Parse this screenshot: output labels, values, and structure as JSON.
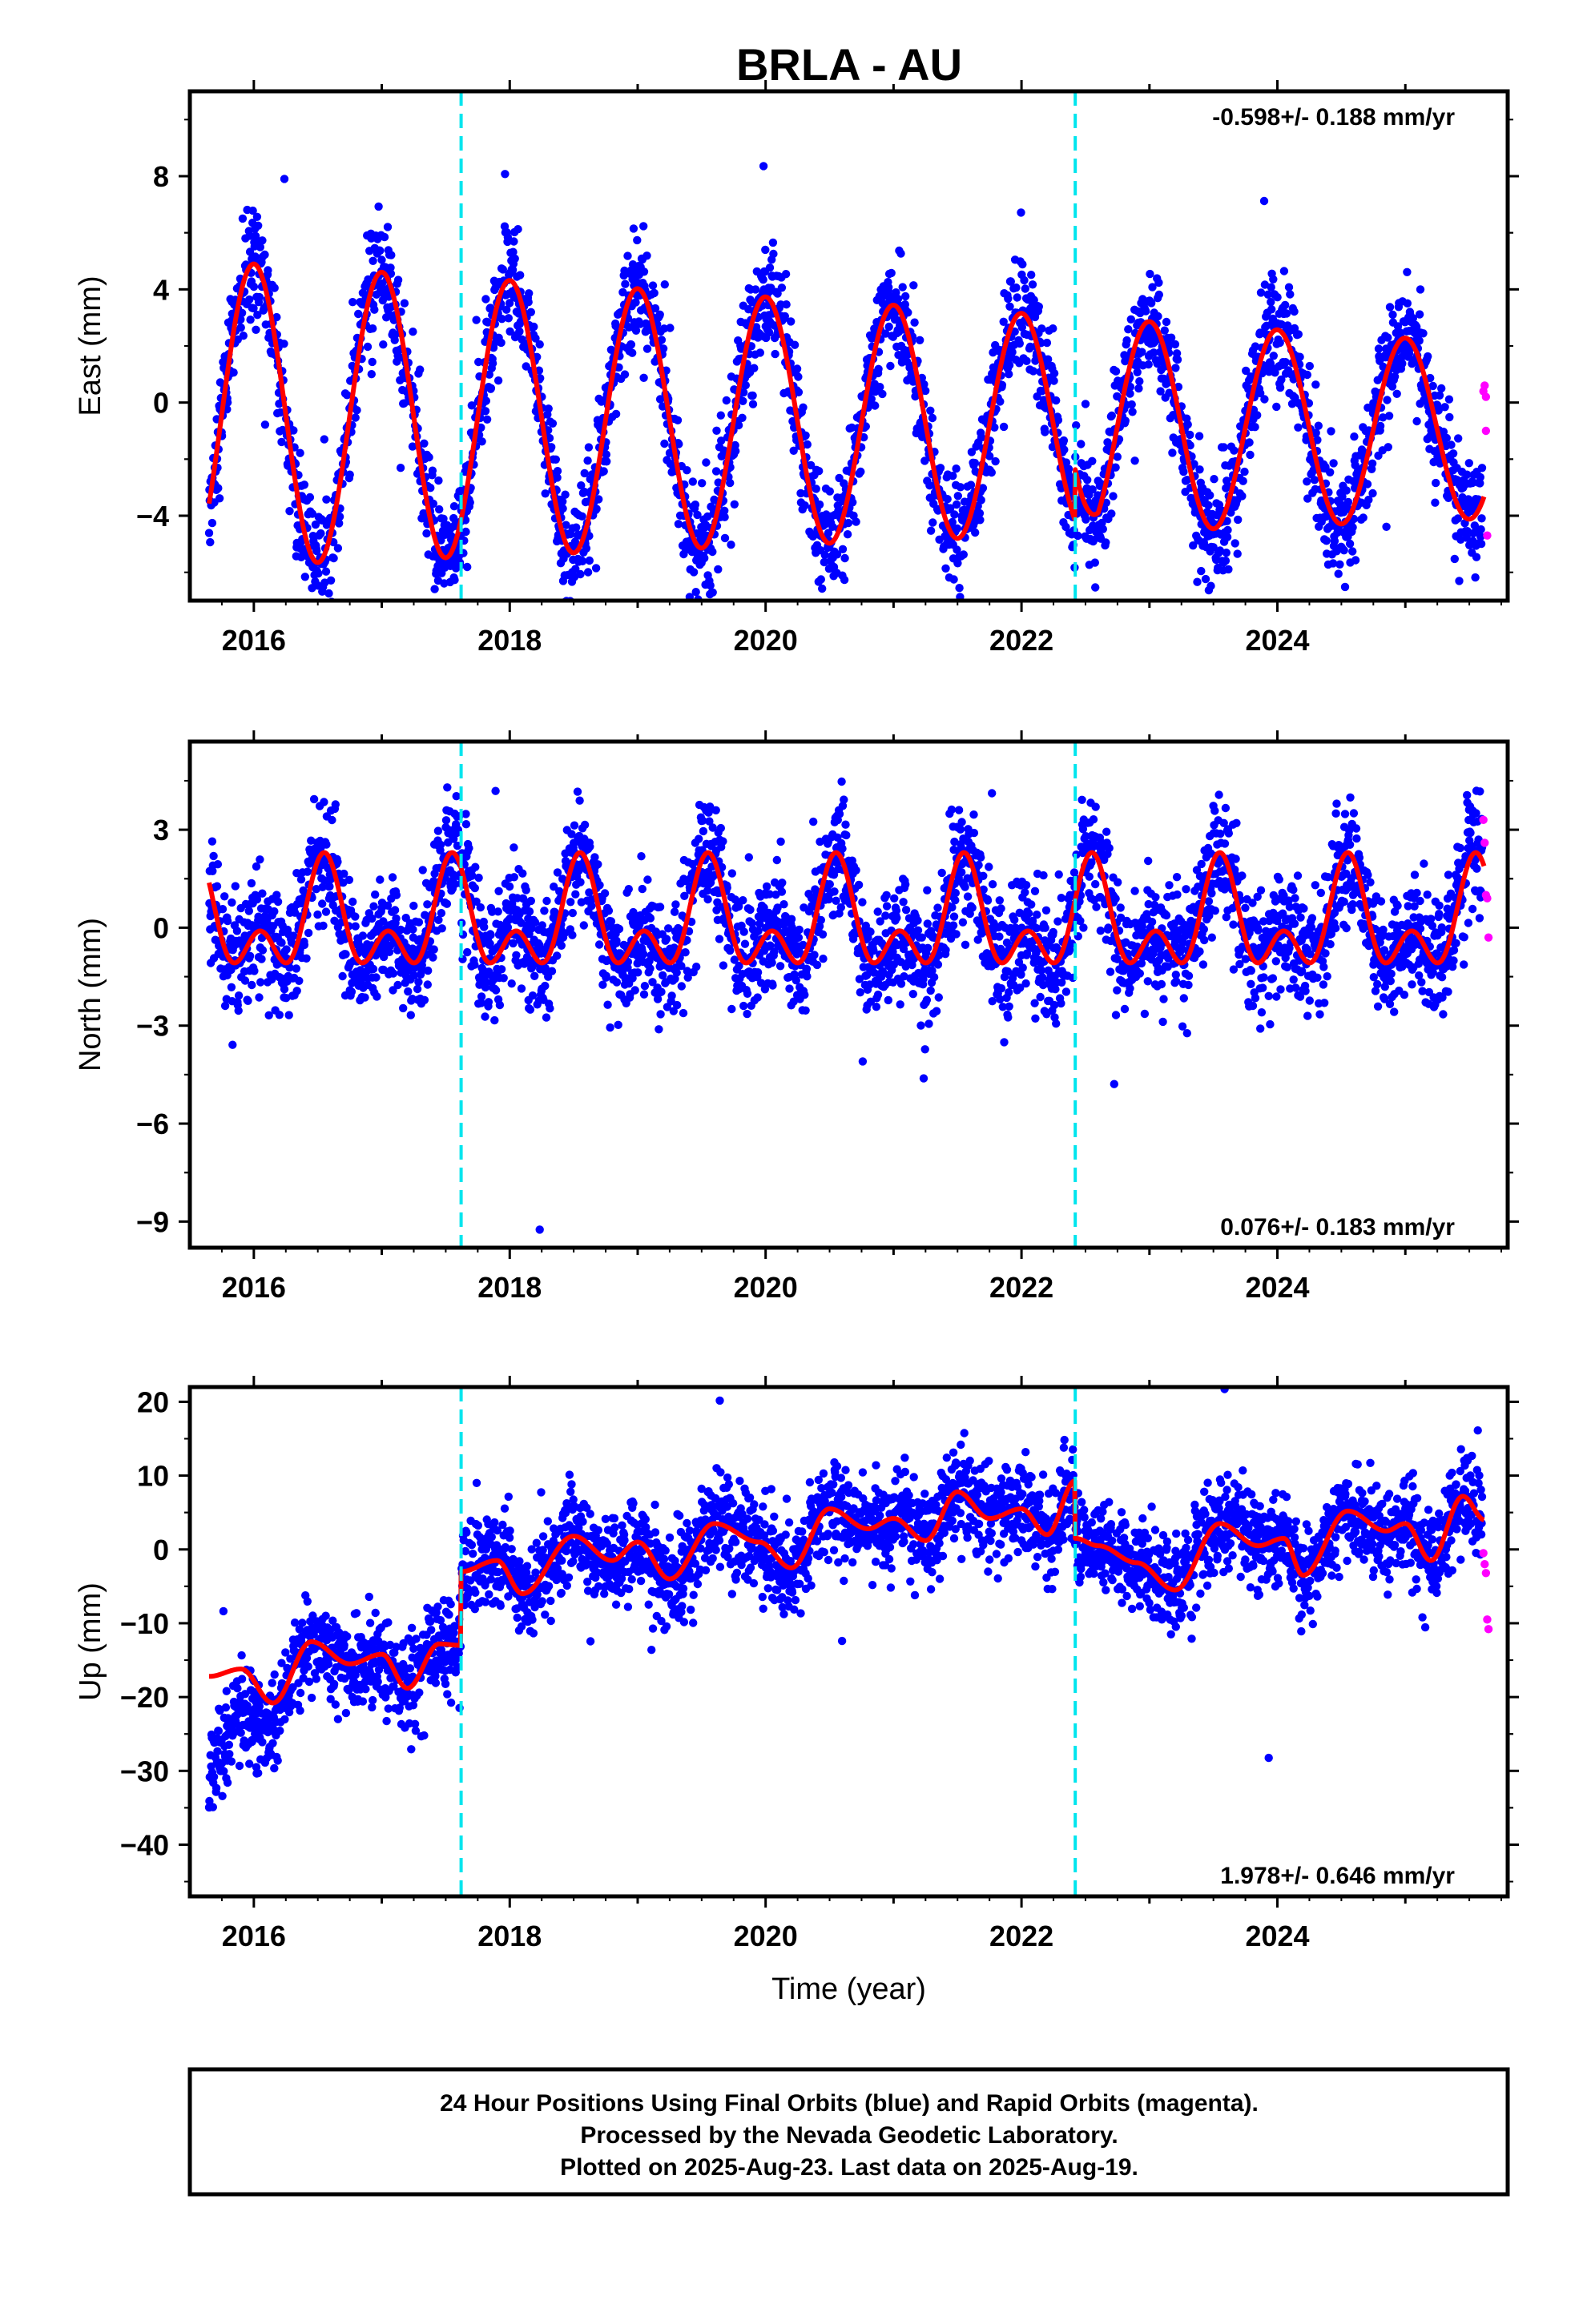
{
  "title": "BRLA - AU",
  "footer": {
    "line1": "24 Hour Positions Using Final Orbits (blue) and Rapid Orbits (magenta).",
    "line2": "Processed by the Nevada Geodetic Laboratory.",
    "line3": "Plotted on 2025-Aug-23. Last data on 2025-Aug-19."
  },
  "chart_data": [
    {
      "type": "scatter",
      "component": "east",
      "ylabel": "East (mm)",
      "xlabel": "",
      "xlim": [
        2015.5,
        2025.8
      ],
      "ylim": [
        -7,
        11
      ],
      "yticks": [
        -4,
        0,
        4,
        8
      ],
      "xticks": [
        2016,
        2018,
        2020,
        2022,
        2024
      ],
      "rate": "-0.598+/- 0.188 mm/yr",
      "rate_position": "top-right",
      "offsets": [
        2017.62,
        2022.42
      ],
      "fit": {
        "amplitude_start": 5.4,
        "amplitude_end": 3.1,
        "trend_start": 0.0,
        "trend_end": -0.6,
        "annual_peak_epoch": 2016.0,
        "semiannual_amplitude": 0.0,
        "step_at_2022_42": 1.8
      },
      "final_orbits": {
        "color": "#0000ff",
        "scatter_sd": 1.0,
        "daily": true
      },
      "rapid_orbits": {
        "color": "#ff00ff",
        "x": [
          2025.61,
          2025.62,
          2025.63,
          2025.63,
          2025.64
        ],
        "y": [
          0.4,
          0.6,
          -1.0,
          0.2,
          -4.7
        ]
      },
      "grid": false,
      "legend": "none"
    },
    {
      "type": "scatter",
      "component": "north",
      "ylabel": "North (mm)",
      "xlabel": "",
      "xlim": [
        2015.5,
        2025.8
      ],
      "ylim": [
        -9.8,
        5.7
      ],
      "yticks": [
        -9,
        -6,
        -3,
        0,
        3
      ],
      "xticks": [
        2016,
        2018,
        2020,
        2022,
        2024
      ],
      "rate": "0.076+/- 0.183 mm/yr",
      "rate_position": "bottom-right",
      "offsets": [
        2017.62,
        2022.42
      ],
      "fit": {
        "base": 0.0,
        "annual_amplitude": 1.2,
        "semiannual_amplitude": 1.0,
        "peak_epoch": 2016.55
      },
      "final_orbits": {
        "color": "#0000ff",
        "scatter_sd": 0.9,
        "daily": true
      },
      "rapid_orbits": {
        "color": "#ff00ff",
        "x": [
          2025.61,
          2025.62,
          2025.63,
          2025.64,
          2025.65
        ],
        "y": [
          3.3,
          2.6,
          1.0,
          0.9,
          -0.3
        ]
      },
      "grid": false,
      "legend": "none"
    },
    {
      "type": "scatter",
      "component": "up",
      "ylabel": "Up (mm)",
      "xlabel": "Time (year)",
      "xlim": [
        2015.5,
        2025.8
      ],
      "ylim": [
        -47,
        22
      ],
      "yticks": [
        -40,
        -30,
        -20,
        -10,
        0,
        10,
        20
      ],
      "xticks": [
        2016,
        2018,
        2020,
        2022,
        2024
      ],
      "rate": "1.978+/- 0.646 mm/yr",
      "rate_position": "bottom-right",
      "offsets": [
        2017.62,
        2022.42
      ],
      "fit_segments": [
        {
          "from": 2015.65,
          "to": 2017.62,
          "x": [
            2015.65,
            2015.9,
            2016.15,
            2016.45,
            2016.75,
            2017.0,
            2017.2,
            2017.45,
            2017.62
          ],
          "y": [
            -17.2,
            -16.2,
            -20.8,
            -12.5,
            -15.5,
            -14.2,
            -18.8,
            -12.8,
            -13.0
          ]
        },
        {
          "from": 2017.62,
          "to": 2022.42,
          "x": [
            2017.62,
            2017.9,
            2018.1,
            2018.5,
            2018.8,
            2019.0,
            2019.25,
            2019.6,
            2019.95,
            2020.2,
            2020.5,
            2020.8,
            2021.0,
            2021.25,
            2021.5,
            2021.75,
            2022.0,
            2022.2,
            2022.42
          ],
          "y": [
            -3.0,
            -1.5,
            -6.0,
            1.8,
            -1.5,
            1.0,
            -4.0,
            3.5,
            1.0,
            -2.5,
            5.5,
            2.8,
            4.2,
            1.2,
            7.8,
            4.2,
            5.5,
            2.0,
            9.3
          ]
        },
        {
          "from": 2022.42,
          "to": 2025.62,
          "x": [
            2022.42,
            2022.6,
            2022.9,
            2023.2,
            2023.55,
            2023.85,
            2024.05,
            2024.2,
            2024.55,
            2024.85,
            2025.0,
            2025.2,
            2025.45,
            2025.62
          ],
          "y": [
            1.5,
            0.5,
            -1.8,
            -5.5,
            3.5,
            0.5,
            1.5,
            -3.5,
            5.2,
            2.5,
            3.5,
            -1.5,
            7.2,
            4.0
          ]
        }
      ],
      "final_orbits": {
        "color": "#0000ff",
        "scatter_sd": 3.2,
        "daily": true
      },
      "rapid_orbits": {
        "color": "#ff00ff",
        "x": [
          2025.61,
          2025.62,
          2025.63,
          2025.64,
          2025.65
        ],
        "y": [
          -0.5,
          -2.0,
          -3.2,
          -9.5,
          -10.8
        ]
      },
      "grid": false,
      "legend": "none"
    }
  ],
  "colors": {
    "final_orbits": "#0000ff",
    "rapid_orbits": "#ff00ff",
    "fit": "#ff0000",
    "offset_marker": "#00e5ee"
  }
}
